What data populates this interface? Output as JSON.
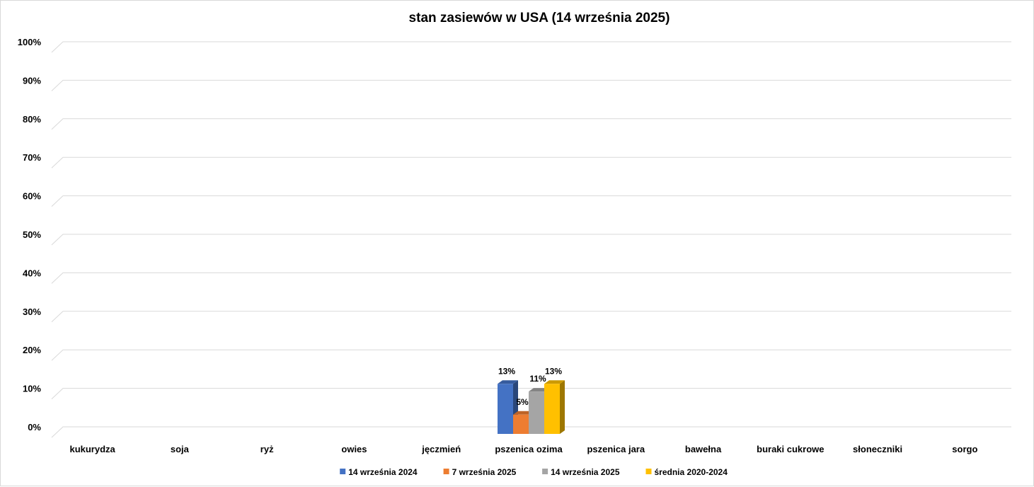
{
  "chart_data": {
    "type": "bar",
    "title": "stan zasiewów w USA (14 września 2025)",
    "categories": [
      "kukurydza",
      "soja",
      "ryż",
      "owies",
      "jęczmień",
      "pszenica ozima",
      "pszenica jara",
      "bawełna",
      "buraki cukrowe",
      "słoneczniki",
      "sorgo"
    ],
    "series": [
      {
        "name": "14 września 2024",
        "color": "#4472c4",
        "values": [
          null,
          null,
          null,
          null,
          null,
          13,
          null,
          null,
          null,
          null,
          null
        ]
      },
      {
        "name": "7 września 2025",
        "color": "#ed7d31",
        "values": [
          null,
          null,
          null,
          null,
          null,
          5,
          null,
          null,
          null,
          null,
          null
        ]
      },
      {
        "name": "14 września 2025",
        "color": "#a5a5a5",
        "values": [
          null,
          null,
          null,
          null,
          null,
          11,
          null,
          null,
          null,
          null,
          null
        ]
      },
      {
        "name": "średnia 2020-2024",
        "color": "#ffc000",
        "values": [
          null,
          null,
          null,
          null,
          null,
          13,
          null,
          null,
          null,
          null,
          null
        ]
      }
    ],
    "ylim": [
      0,
      100
    ],
    "yticks": [
      "0%",
      "10%",
      "20%",
      "30%",
      "40%",
      "50%",
      "60%",
      "70%",
      "80%",
      "90%",
      "100%"
    ],
    "unit": "%",
    "grid": true,
    "legend": "bottom",
    "style": "3d-clustered-column"
  }
}
